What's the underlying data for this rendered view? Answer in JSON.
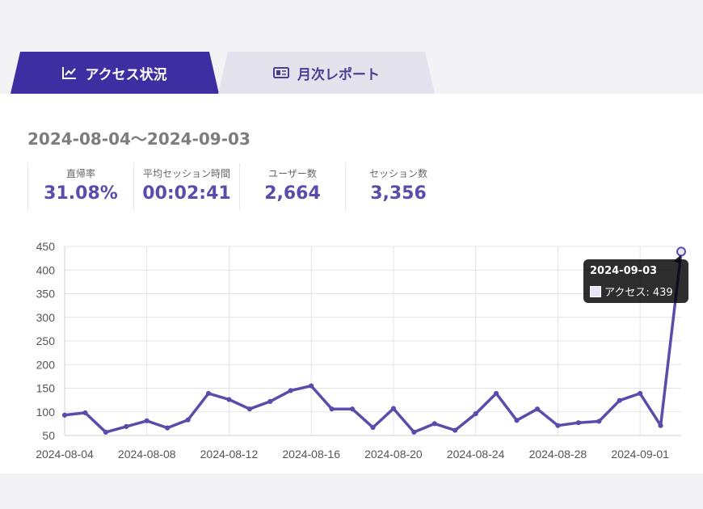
{
  "tabs": [
    {
      "label": "アクセス状況",
      "icon": "line-chart-icon",
      "active": true
    },
    {
      "label": "月次レポート",
      "icon": "newspaper-icon",
      "active": false
    }
  ],
  "date_range": "2024-08-04〜2024-09-03",
  "stats": [
    {
      "label": "直帰率",
      "value": "31.08%"
    },
    {
      "label": "平均セッション時間",
      "value": "00:02:41"
    },
    {
      "label": "ユーザー数",
      "value": "2,664"
    },
    {
      "label": "セッション数",
      "value": "3,356"
    }
  ],
  "colors": {
    "accent": "#3d2fa2",
    "line": "#5b4bab",
    "tab_inactive_bg": "#e4e2ed",
    "value_text": "#5b4bab"
  },
  "tooltip": {
    "date": "2024-09-03",
    "label": "アクセス: 439"
  },
  "chart_data": {
    "type": "line",
    "title": "",
    "xlabel": "",
    "ylabel": "",
    "ylim": [
      50,
      450
    ],
    "yticks": [
      50,
      100,
      150,
      200,
      250,
      300,
      350,
      400,
      450
    ],
    "x_tick_labels": [
      "2024-08-04",
      "2024-08-08",
      "2024-08-12",
      "2024-08-16",
      "2024-08-20",
      "2024-08-24",
      "2024-08-28",
      "2024-09-01"
    ],
    "grid": true,
    "x": [
      "2024-08-04",
      "2024-08-05",
      "2024-08-06",
      "2024-08-07",
      "2024-08-08",
      "2024-08-09",
      "2024-08-10",
      "2024-08-11",
      "2024-08-12",
      "2024-08-13",
      "2024-08-14",
      "2024-08-15",
      "2024-08-16",
      "2024-08-17",
      "2024-08-18",
      "2024-08-19",
      "2024-08-20",
      "2024-08-21",
      "2024-08-22",
      "2024-08-23",
      "2024-08-24",
      "2024-08-25",
      "2024-08-26",
      "2024-08-27",
      "2024-08-28",
      "2024-08-29",
      "2024-08-30",
      "2024-08-31",
      "2024-09-01",
      "2024-09-02",
      "2024-09-03"
    ],
    "series": [
      {
        "name": "アクセス",
        "values": [
          93,
          98,
          57,
          69,
          81,
          66,
          83,
          139,
          126,
          106,
          122,
          145,
          155,
          106,
          106,
          67,
          107,
          57,
          75,
          61,
          96,
          139,
          82,
          106,
          71,
          77,
          80,
          124,
          139,
          71,
          439
        ]
      }
    ]
  }
}
